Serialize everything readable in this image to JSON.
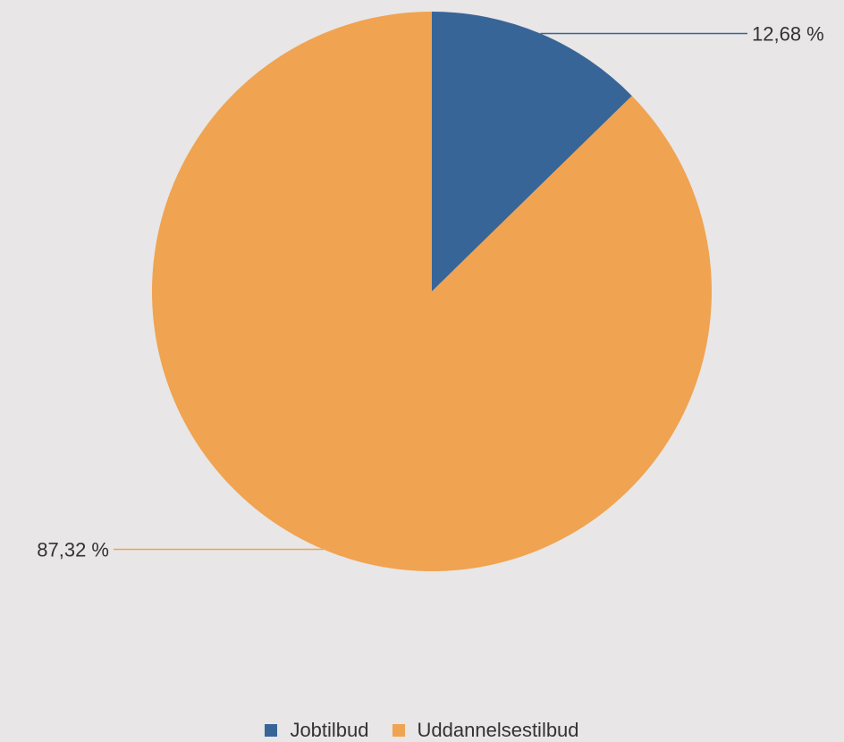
{
  "chart_data": {
    "type": "pie",
    "series": [
      {
        "name": "",
        "slices": [
          {
            "label": "Jobtilbud",
            "value": 12.68,
            "value_label": "12,68 %",
            "color": "#386598"
          },
          {
            "label": "Uddannelsestilbud",
            "value": 87.32,
            "value_label": "87,32 %",
            "color": "#f0a350"
          }
        ]
      }
    ],
    "start_angle": "12 o'clock",
    "direction": "clockwise",
    "legend_position": "bottom-center",
    "legend": [
      {
        "label": "Jobtilbud",
        "color": "#386598"
      },
      {
        "label": "Uddannelsestilbud",
        "color": "#f0a350"
      }
    ]
  }
}
